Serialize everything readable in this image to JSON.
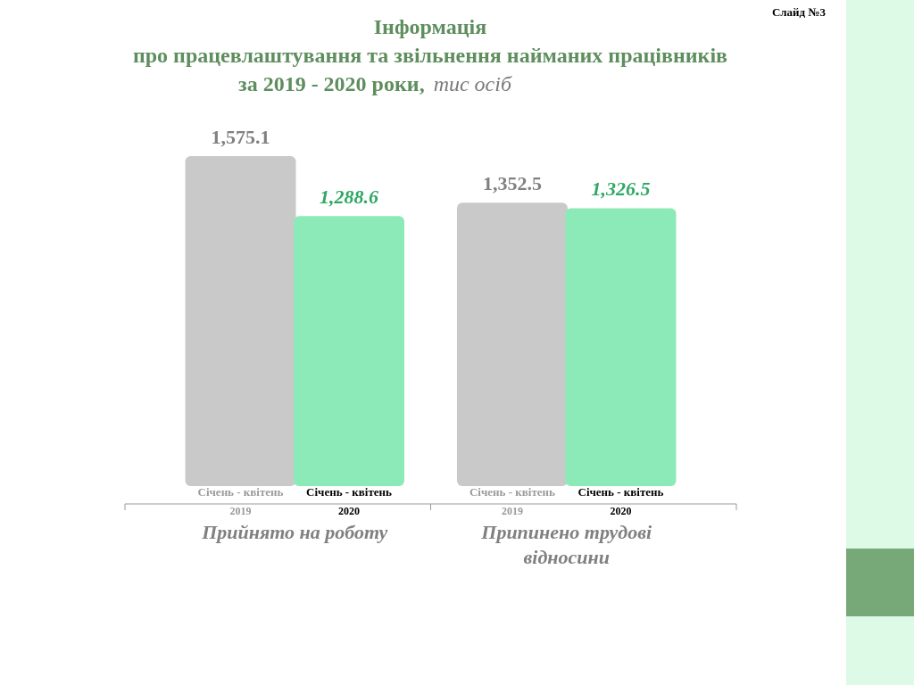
{
  "chart_data": {
    "type": "bar",
    "title": "Інформація\nпро працевлаштування та звільнення найманих працівників\nза 2019 - 2020  роки,",
    "subtitle": "тис осіб",
    "annotations": [
      "Слайд №3"
    ],
    "categories": [
      "Прийнято на роботу",
      "Припинено трудові відносини"
    ],
    "series": [
      {
        "name": "Січень - квітень 2019",
        "color": "#c9c9c9",
        "values": [
          1575.1,
          1352.5
        ],
        "value_labels": [
          "1,575.1",
          "1,352.5"
        ]
      },
      {
        "name": "Січень - квітень 2020",
        "color": "#8ceab8",
        "values": [
          1288.6,
          1326.5
        ],
        "value_labels": [
          "1,288.6",
          "1,326.5"
        ]
      }
    ]
  }
}
